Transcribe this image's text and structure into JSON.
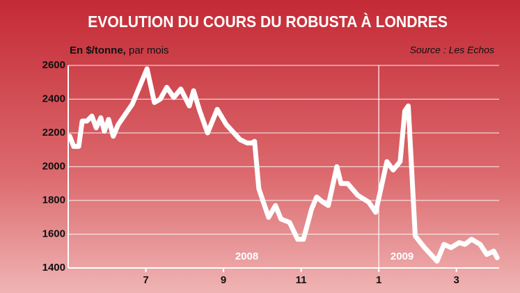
{
  "chart_data": {
    "type": "line",
    "title": "EVOLUTION DU COURS DU ROBUSTA À LONDRES",
    "unit_label": "En $/tonne,",
    "period_label": "par mois",
    "source": "Source : Les Echos",
    "year_labels": [
      {
        "text": "2008",
        "x": 9.6
      },
      {
        "text": "2009",
        "x": 13.6
      }
    ],
    "year_separator": 13,
    "color": "#ffffff",
    "x": [
      5.04,
      5.14,
      5.27,
      5.36,
      5.48,
      5.61,
      5.72,
      5.84,
      5.93,
      6.04,
      6.16,
      6.29,
      6.65,
      7.03,
      7.22,
      7.37,
      7.54,
      7.72,
      7.9,
      8.12,
      8.23,
      8.39,
      8.59,
      8.84,
      9.07,
      9.43,
      9.61,
      9.73,
      9.8,
      9.91,
      10.16,
      10.34,
      10.48,
      10.7,
      10.91,
      11.06,
      11.27,
      11.4,
      11.56,
      11.7,
      11.92,
      12.03,
      12.2,
      12.46,
      12.74,
      12.92,
      13.21,
      13.37,
      13.55,
      13.67,
      13.76,
      13.94,
      14.18,
      14.5,
      14.68,
      14.86,
      15.07,
      15.22,
      15.39,
      15.61,
      15.78,
      15.96,
      16.05
    ],
    "values": [
      2180,
      2120,
      2120,
      2270,
      2270,
      2300,
      2230,
      2290,
      2210,
      2280,
      2180,
      2250,
      2370,
      2580,
      2380,
      2400,
      2470,
      2410,
      2460,
      2360,
      2450,
      2330,
      2200,
      2340,
      2250,
      2160,
      2140,
      2140,
      2150,
      1870,
      1700,
      1770,
      1690,
      1670,
      1570,
      1570,
      1750,
      1820,
      1790,
      1770,
      2000,
      1900,
      1900,
      1830,
      1790,
      1730,
      2030,
      1980,
      2030,
      2330,
      2360,
      1590,
      1520,
      1440,
      1540,
      1520,
      1550,
      1540,
      1570,
      1540,
      1480,
      1500,
      1460
    ],
    "xlim": [
      5,
      16.1
    ],
    "xticks": [
      7,
      9,
      11,
      {
        "value": 13,
        "label": "1"
      },
      {
        "value": 15,
        "label": "3"
      }
    ],
    "ylim": [
      1400,
      2600
    ],
    "yticks": [
      1400,
      1600,
      1800,
      2000,
      2200,
      2400,
      2600
    ],
    "grid": true
  }
}
